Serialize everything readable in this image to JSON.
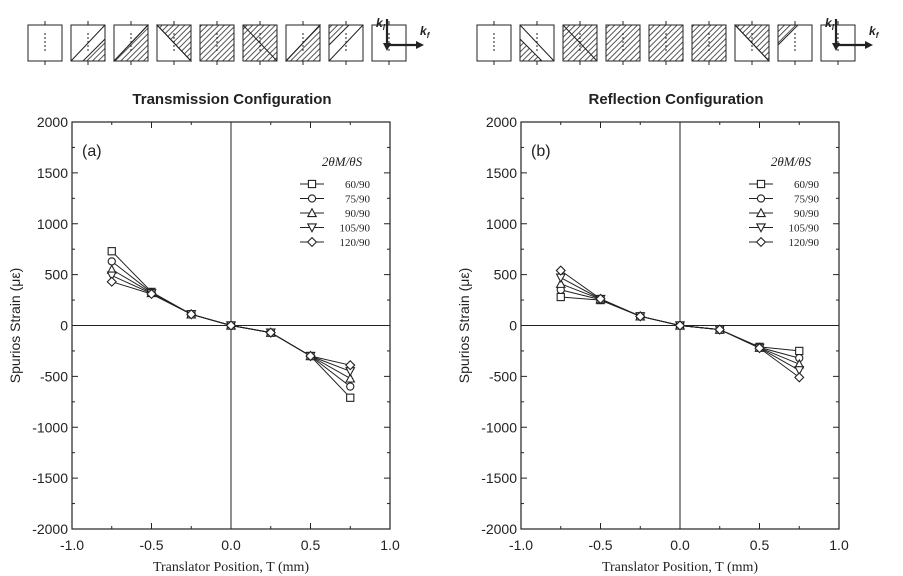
{
  "colors": {
    "ink": "#222222",
    "hatch": "#555555",
    "background": "#ffffff"
  },
  "diagram_labels": {
    "incident": "k",
    "incident_sub": "i",
    "final": "k",
    "final_sub": "f"
  },
  "chart_data": [
    {
      "type": "line",
      "panel_label": "(a)",
      "title": "Transmission Configuration",
      "xlabel": "Translator Position, T (mm)",
      "ylabel": "Spurios Strain (με)",
      "xlim": [
        -1.0,
        1.0
      ],
      "ylim": [
        -2000,
        2000
      ],
      "x_ticks": [
        "-1.0",
        "-0.5",
        "0.0",
        "0.5",
        "1.0"
      ],
      "y_ticks": [
        "2000",
        "1500",
        "1000",
        "500",
        "0",
        "-500",
        "-1000",
        "-1500",
        "-2000"
      ],
      "legend_title": "2θM/θS",
      "legend_position": "right",
      "grid": false,
      "x": [
        -0.75,
        -0.5,
        -0.25,
        0.0,
        0.25,
        0.5,
        0.75
      ],
      "series": [
        {
          "name": "60/90",
          "marker": "square",
          "values": [
            730,
            330,
            110,
            0,
            -70,
            -300,
            -710
          ]
        },
        {
          "name": "75/90",
          "marker": "circle",
          "values": [
            630,
            325,
            110,
            0,
            -70,
            -300,
            -600
          ]
        },
        {
          "name": "90/90",
          "marker": "triangle-up",
          "values": [
            550,
            320,
            110,
            0,
            -70,
            -300,
            -520
          ]
        },
        {
          "name": "105/90",
          "marker": "triangle-down",
          "values": [
            490,
            315,
            110,
            0,
            -70,
            -300,
            -450
          ]
        },
        {
          "name": "120/90",
          "marker": "diamond",
          "values": [
            430,
            310,
            110,
            0,
            -70,
            -300,
            -390
          ]
        }
      ]
    },
    {
      "type": "line",
      "panel_label": "(b)",
      "title": "Reflection Configuration",
      "xlabel": "Translator Position, T (mm)",
      "ylabel": "Spurios Strain (με)",
      "xlim": [
        -1.0,
        1.0
      ],
      "ylim": [
        -2000,
        2000
      ],
      "x_ticks": [
        "-1.0",
        "-0.5",
        "0.0",
        "0.5",
        "1.0"
      ],
      "y_ticks": [
        "2000",
        "1500",
        "1000",
        "500",
        "0",
        "-500",
        "-1000",
        "-1500",
        "-2000"
      ],
      "legend_title": "2θM/θS",
      "legend_position": "right",
      "grid": false,
      "x": [
        -0.75,
        -0.5,
        -0.25,
        0.0,
        0.25,
        0.5,
        0.75
      ],
      "series": [
        {
          "name": "60/90",
          "marker": "square",
          "values": [
            280,
            250,
            90,
            0,
            -40,
            -210,
            -250
          ]
        },
        {
          "name": "75/90",
          "marker": "circle",
          "values": [
            350,
            255,
            90,
            0,
            -40,
            -215,
            -320
          ]
        },
        {
          "name": "90/90",
          "marker": "triangle-up",
          "values": [
            410,
            258,
            90,
            0,
            -40,
            -218,
            -380
          ]
        },
        {
          "name": "105/90",
          "marker": "triangle-down",
          "values": [
            470,
            260,
            90,
            0,
            -40,
            -220,
            -440
          ]
        },
        {
          "name": "120/90",
          "marker": "diamond",
          "values": [
            540,
            262,
            90,
            0,
            -40,
            -222,
            -510
          ]
        }
      ]
    }
  ]
}
